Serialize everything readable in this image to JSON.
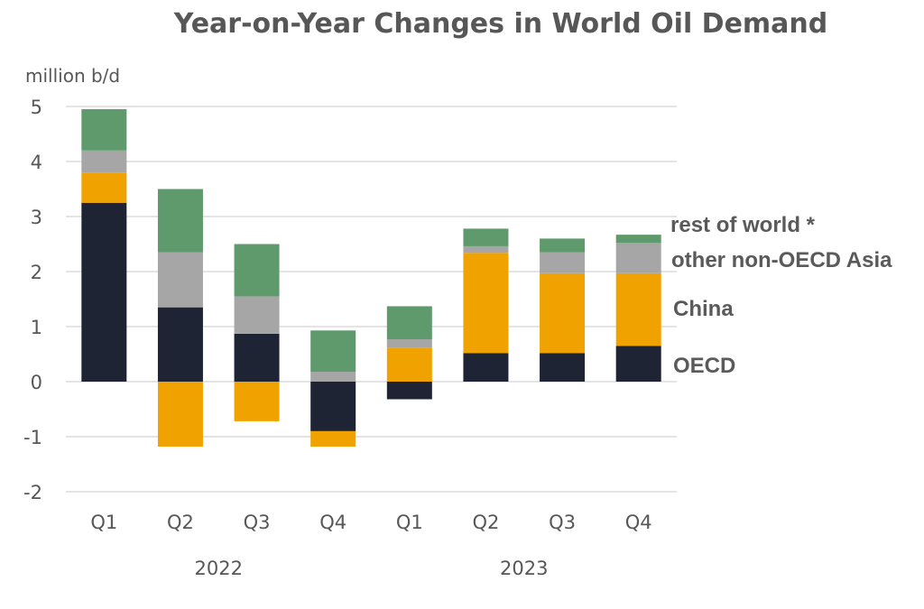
{
  "chart_data": {
    "type": "bar",
    "stacked": true,
    "title": "Year-on-Year Changes in World Oil Demand",
    "ylabel": "million b/d",
    "xlabel": "",
    "ylim": [
      -2,
      5
    ],
    "yticks": [
      5,
      4,
      3,
      2,
      1,
      0,
      -1,
      -2
    ],
    "grid": true,
    "legend_placement": "right",
    "categories": [
      "Q1",
      "Q2",
      "Q3",
      "Q4",
      "Q1",
      "Q2",
      "Q3",
      "Q4"
    ],
    "groups": [
      {
        "label": "2022",
        "categories": [
          0,
          1,
          2,
          3
        ]
      },
      {
        "label": "2023",
        "categories": [
          4,
          5,
          6,
          7
        ]
      }
    ],
    "series": [
      {
        "name": "OECD",
        "color": "#1f2434",
        "values": [
          3.25,
          1.35,
          0.87,
          -0.9,
          -0.32,
          0.52,
          0.52,
          0.65
        ]
      },
      {
        "name": "China",
        "color": "#f0a200",
        "values": [
          0.55,
          -1.18,
          -0.72,
          -0.28,
          0.62,
          1.82,
          1.45,
          1.32
        ]
      },
      {
        "name": "other non-OECD Asia",
        "color": "#a6a6a6",
        "values": [
          0.4,
          1.0,
          0.68,
          0.18,
          0.15,
          0.12,
          0.38,
          0.55
        ]
      },
      {
        "name": "rest of world *",
        "color": "#5f9a6c",
        "values": [
          0.75,
          1.15,
          0.95,
          0.75,
          0.6,
          0.32,
          0.25,
          0.15
        ]
      }
    ]
  }
}
